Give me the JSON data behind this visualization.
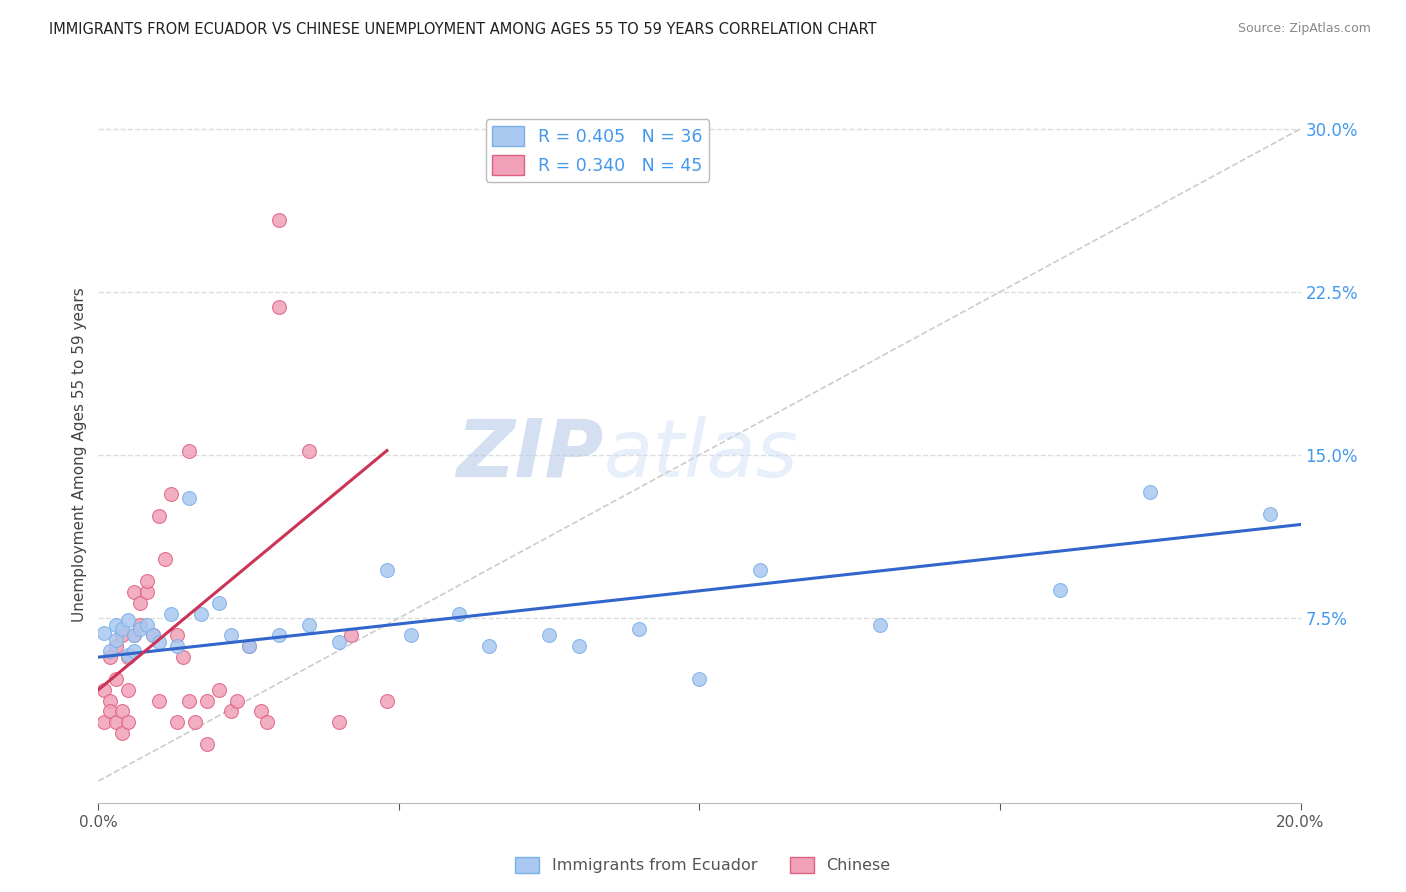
{
  "title": "IMMIGRANTS FROM ECUADOR VS CHINESE UNEMPLOYMENT AMONG AGES 55 TO 59 YEARS CORRELATION CHART",
  "source": "Source: ZipAtlas.com",
  "ylabel": "Unemployment Among Ages 55 to 59 years",
  "xlim": [
    0,
    0.2
  ],
  "ylim": [
    -0.01,
    0.31
  ],
  "y_ticks_right": [
    0.075,
    0.15,
    0.225,
    0.3
  ],
  "watermark_zip": "ZIP",
  "watermark_atlas": "atlas",
  "ecuador_scatter": {
    "color": "#aac8f0",
    "edgecolor": "#7ab0e8",
    "alpha": 0.85,
    "x": [
      0.001,
      0.002,
      0.003,
      0.003,
      0.004,
      0.005,
      0.005,
      0.006,
      0.006,
      0.007,
      0.008,
      0.009,
      0.01,
      0.012,
      0.013,
      0.015,
      0.017,
      0.02,
      0.022,
      0.025,
      0.03,
      0.035,
      0.04,
      0.048,
      0.052,
      0.06,
      0.065,
      0.075,
      0.08,
      0.09,
      0.1,
      0.11,
      0.13,
      0.16,
      0.175,
      0.195
    ],
    "y": [
      0.068,
      0.06,
      0.072,
      0.065,
      0.07,
      0.058,
      0.074,
      0.06,
      0.067,
      0.07,
      0.072,
      0.067,
      0.064,
      0.077,
      0.062,
      0.13,
      0.077,
      0.082,
      0.067,
      0.062,
      0.067,
      0.072,
      0.064,
      0.097,
      0.067,
      0.077,
      0.062,
      0.067,
      0.062,
      0.07,
      0.047,
      0.097,
      0.072,
      0.088,
      0.133,
      0.123
    ]
  },
  "chinese_scatter": {
    "color": "#f0a0b8",
    "edgecolor": "#e06080",
    "alpha": 0.85,
    "x": [
      0.001,
      0.001,
      0.002,
      0.002,
      0.002,
      0.003,
      0.003,
      0.003,
      0.004,
      0.004,
      0.004,
      0.005,
      0.005,
      0.005,
      0.006,
      0.006,
      0.007,
      0.007,
      0.008,
      0.008,
      0.009,
      0.01,
      0.01,
      0.011,
      0.012,
      0.013,
      0.013,
      0.014,
      0.015,
      0.015,
      0.016,
      0.018,
      0.018,
      0.02,
      0.022,
      0.023,
      0.025,
      0.027,
      0.028,
      0.03,
      0.03,
      0.035,
      0.04,
      0.042,
      0.048
    ],
    "y": [
      0.042,
      0.027,
      0.057,
      0.037,
      0.032,
      0.062,
      0.047,
      0.027,
      0.067,
      0.032,
      0.022,
      0.057,
      0.042,
      0.027,
      0.087,
      0.067,
      0.072,
      0.082,
      0.087,
      0.092,
      0.067,
      0.122,
      0.037,
      0.102,
      0.132,
      0.067,
      0.027,
      0.057,
      0.152,
      0.037,
      0.027,
      0.037,
      0.017,
      0.042,
      0.032,
      0.037,
      0.062,
      0.032,
      0.027,
      0.258,
      0.218,
      0.152,
      0.027,
      0.067,
      0.037
    ]
  },
  "ecuador_trend": {
    "x": [
      0.0,
      0.2
    ],
    "y": [
      0.057,
      0.118
    ],
    "color": "#3366cc",
    "linewidth": 2.2
  },
  "chinese_trend": {
    "x": [
      0.0,
      0.048
    ],
    "y": [
      0.042,
      0.152
    ],
    "color": "#cc3355",
    "linewidth": 2.2
  },
  "diagonal_ref": {
    "color": "#cccccc",
    "linewidth": 1.2,
    "linestyle": "--"
  },
  "background_color": "#ffffff",
  "grid_color": "#dddddd",
  "title_color": "#222222",
  "axis_label_color": "#444444",
  "right_tick_color": "#4499ee",
  "legend_color": "#4499ee"
}
